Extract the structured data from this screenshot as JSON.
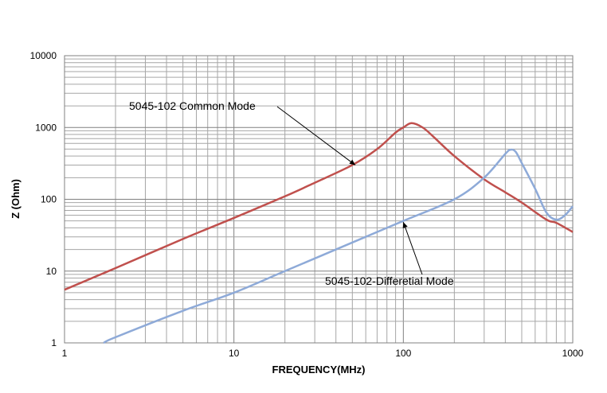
{
  "chart_data": {
    "type": "line",
    "title": "",
    "xlabel": "FREQUENCY(MHz)",
    "ylabel": "Z (Ohm)",
    "xscale": "log",
    "yscale": "log",
    "xlim": [
      1,
      1000
    ],
    "ylim": [
      1,
      10000
    ],
    "grid": true,
    "x_ticks": [
      "1",
      "10",
      "100",
      "1000"
    ],
    "y_ticks": [
      "1",
      "10",
      "100",
      "1000",
      "10000"
    ],
    "series": [
      {
        "name": "5045-102 Common Mode",
        "color": "#c0504d",
        "points": [
          [
            1,
            5.5
          ],
          [
            2,
            11
          ],
          [
            5,
            28
          ],
          [
            10,
            55
          ],
          [
            20,
            110
          ],
          [
            30,
            170
          ],
          [
            50,
            300
          ],
          [
            70,
            500
          ],
          [
            90,
            850
          ],
          [
            100,
            1000
          ],
          [
            112,
            1150
          ],
          [
            130,
            1000
          ],
          [
            150,
            750
          ],
          [
            200,
            400
          ],
          [
            300,
            190
          ],
          [
            400,
            125
          ],
          [
            500,
            90
          ],
          [
            700,
            52
          ],
          [
            800,
            47
          ],
          [
            1000,
            35
          ]
        ]
      },
      {
        "name": "5045-102-Differetial Mode",
        "color": "#8eaad8",
        "points": [
          [
            1.7,
            1
          ],
          [
            2,
            1.2
          ],
          [
            5,
            2.8
          ],
          [
            10,
            5
          ],
          [
            20,
            10
          ],
          [
            50,
            25
          ],
          [
            100,
            50
          ],
          [
            200,
            100
          ],
          [
            300,
            200
          ],
          [
            400,
            430
          ],
          [
            430,
            490
          ],
          [
            460,
            460
          ],
          [
            500,
            320
          ],
          [
            600,
            140
          ],
          [
            700,
            65
          ],
          [
            800,
            52
          ],
          [
            900,
            60
          ],
          [
            1000,
            80
          ]
        ]
      }
    ],
    "annotations": [
      {
        "text": "5045-102 Common Mode",
        "series": 0,
        "point": [
          52,
          300
        ]
      },
      {
        "text": "5045-102-Differetial Mode",
        "series": 1,
        "point": [
          100,
          48
        ]
      }
    ]
  }
}
